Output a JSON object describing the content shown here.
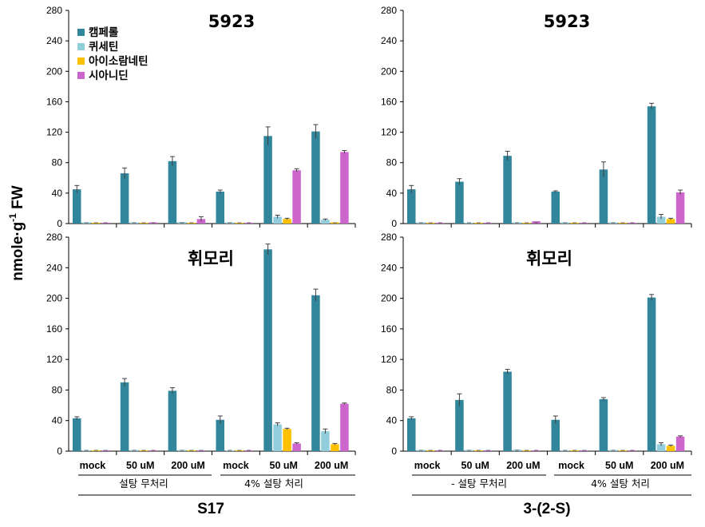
{
  "y_axis_label": {
    "main": "nmole·g",
    "superscript": "-1",
    "suffix": " FW"
  },
  "colors": {
    "series": [
      "#31869b",
      "#92cddc",
      "#ffc000",
      "#cc66cc"
    ],
    "error_bar": "#404040",
    "axis": "#000000"
  },
  "chart_data": [
    {
      "type": "bar",
      "title": "5923",
      "ylim": [
        0,
        280
      ],
      "yticks": [
        0,
        40,
        80,
        120,
        160,
        200,
        240,
        280
      ],
      "categories": [
        "mock",
        "50 uM",
        "200 uM",
        "mock",
        "50 uM",
        "200 uM"
      ],
      "series": [
        {
          "name": "캠페롤",
          "values": [
            45,
            66,
            82,
            42,
            115,
            121
          ],
          "errors": [
            5,
            7,
            6,
            2,
            12,
            9
          ]
        },
        {
          "name": "퀴세틴",
          "values": [
            1,
            1,
            2,
            1,
            9,
            5
          ],
          "errors": [
            0,
            0,
            0,
            0,
            2,
            1
          ]
        },
        {
          "name": "아이소람네틴",
          "values": [
            0,
            0,
            0,
            0,
            6,
            1
          ],
          "errors": [
            0,
            0,
            0,
            0,
            1,
            0
          ]
        },
        {
          "name": "시아니딘",
          "values": [
            0,
            1,
            6,
            0,
            70,
            94
          ],
          "errors": [
            0,
            0,
            3,
            0,
            2,
            2
          ]
        }
      ]
    },
    {
      "type": "bar",
      "title": "5923",
      "ylim": [
        0,
        280
      ],
      "yticks": [
        0,
        40,
        80,
        120,
        160,
        200,
        240,
        280
      ],
      "categories": [
        "mock",
        "50 uM",
        "200 uM",
        "mock",
        "50 uM",
        "200 uM"
      ],
      "series": [
        {
          "name": "캠페롤",
          "values": [
            45,
            55,
            89,
            42,
            71,
            154
          ],
          "errors": [
            5,
            4,
            6,
            1,
            10,
            4
          ]
        },
        {
          "name": "퀴세틴",
          "values": [
            1,
            0,
            1,
            1,
            1,
            9
          ],
          "errors": [
            0,
            0,
            0,
            0,
            0,
            3
          ]
        },
        {
          "name": "아이소람네틴",
          "values": [
            0,
            0,
            0,
            0,
            0,
            6
          ],
          "errors": [
            0,
            0,
            0,
            0,
            0,
            1
          ]
        },
        {
          "name": "시아니딘",
          "values": [
            0,
            0,
            3,
            0,
            0,
            41
          ],
          "errors": [
            0,
            0,
            0,
            0,
            0,
            3
          ]
        }
      ]
    },
    {
      "type": "bar",
      "title": "휘모리",
      "ylim": [
        0,
        280
      ],
      "yticks": [
        0,
        40,
        80,
        120,
        160,
        200,
        240,
        280
      ],
      "categories": [
        "mock",
        "50 uM",
        "200 uM",
        "mock",
        "50 uM",
        "200 uM"
      ],
      "series": [
        {
          "name": "캠페롤",
          "values": [
            43,
            90,
            79,
            41,
            264,
            204
          ],
          "errors": [
            2,
            5,
            4,
            5,
            7,
            8
          ]
        },
        {
          "name": "퀴세틴",
          "values": [
            0,
            1,
            1,
            0,
            35,
            26
          ],
          "errors": [
            0,
            0,
            0,
            0,
            2,
            3
          ]
        },
        {
          "name": "아이소람네틴",
          "values": [
            0,
            0,
            0,
            0,
            29,
            9
          ],
          "errors": [
            0,
            0,
            0,
            0,
            1,
            1
          ]
        },
        {
          "name": "시아니딘",
          "values": [
            0,
            0,
            0,
            0,
            10,
            62
          ],
          "errors": [
            0,
            0,
            0,
            0,
            1,
            1
          ]
        }
      ]
    },
    {
      "type": "bar",
      "title": "휘모리",
      "ylim": [
        0,
        280
      ],
      "yticks": [
        0,
        40,
        80,
        120,
        160,
        200,
        240,
        280
      ],
      "categories": [
        "mock",
        "50 uM",
        "200 uM",
        "mock",
        "50 uM",
        "200 uM"
      ],
      "series": [
        {
          "name": "캠페롤",
          "values": [
            43,
            67,
            104,
            41,
            68,
            201
          ],
          "errors": [
            2,
            8,
            3,
            5,
            2,
            4
          ]
        },
        {
          "name": "퀴세틴",
          "values": [
            1,
            1,
            2,
            0,
            1,
            9
          ],
          "errors": [
            0,
            0,
            0,
            0,
            0,
            2
          ]
        },
        {
          "name": "아이소람네틴",
          "values": [
            0,
            0,
            0,
            0,
            0,
            7
          ],
          "errors": [
            0,
            0,
            0,
            0,
            0,
            1
          ]
        },
        {
          "name": "시아니딘",
          "values": [
            0,
            0,
            0,
            0,
            0,
            19
          ],
          "errors": [
            0,
            0,
            0,
            0,
            0,
            1
          ]
        }
      ]
    }
  ],
  "legend": {
    "items": [
      {
        "label": "캠페롤",
        "color": "#31869b"
      },
      {
        "label": "퀴세틴",
        "color": "#92cddc"
      },
      {
        "label": "아이소람네틴",
        "color": "#ffc000"
      },
      {
        "label": "시아니딘",
        "color": "#cc66cc"
      }
    ]
  },
  "group_labels": {
    "left": [
      "설탕 무처리",
      "4% 설탕 처리"
    ],
    "right": [
      "- 설탕 무처리",
      "4% 설탕 처리"
    ]
  },
  "column_titles": {
    "left": "S17",
    "right": "3-(2-S)"
  }
}
